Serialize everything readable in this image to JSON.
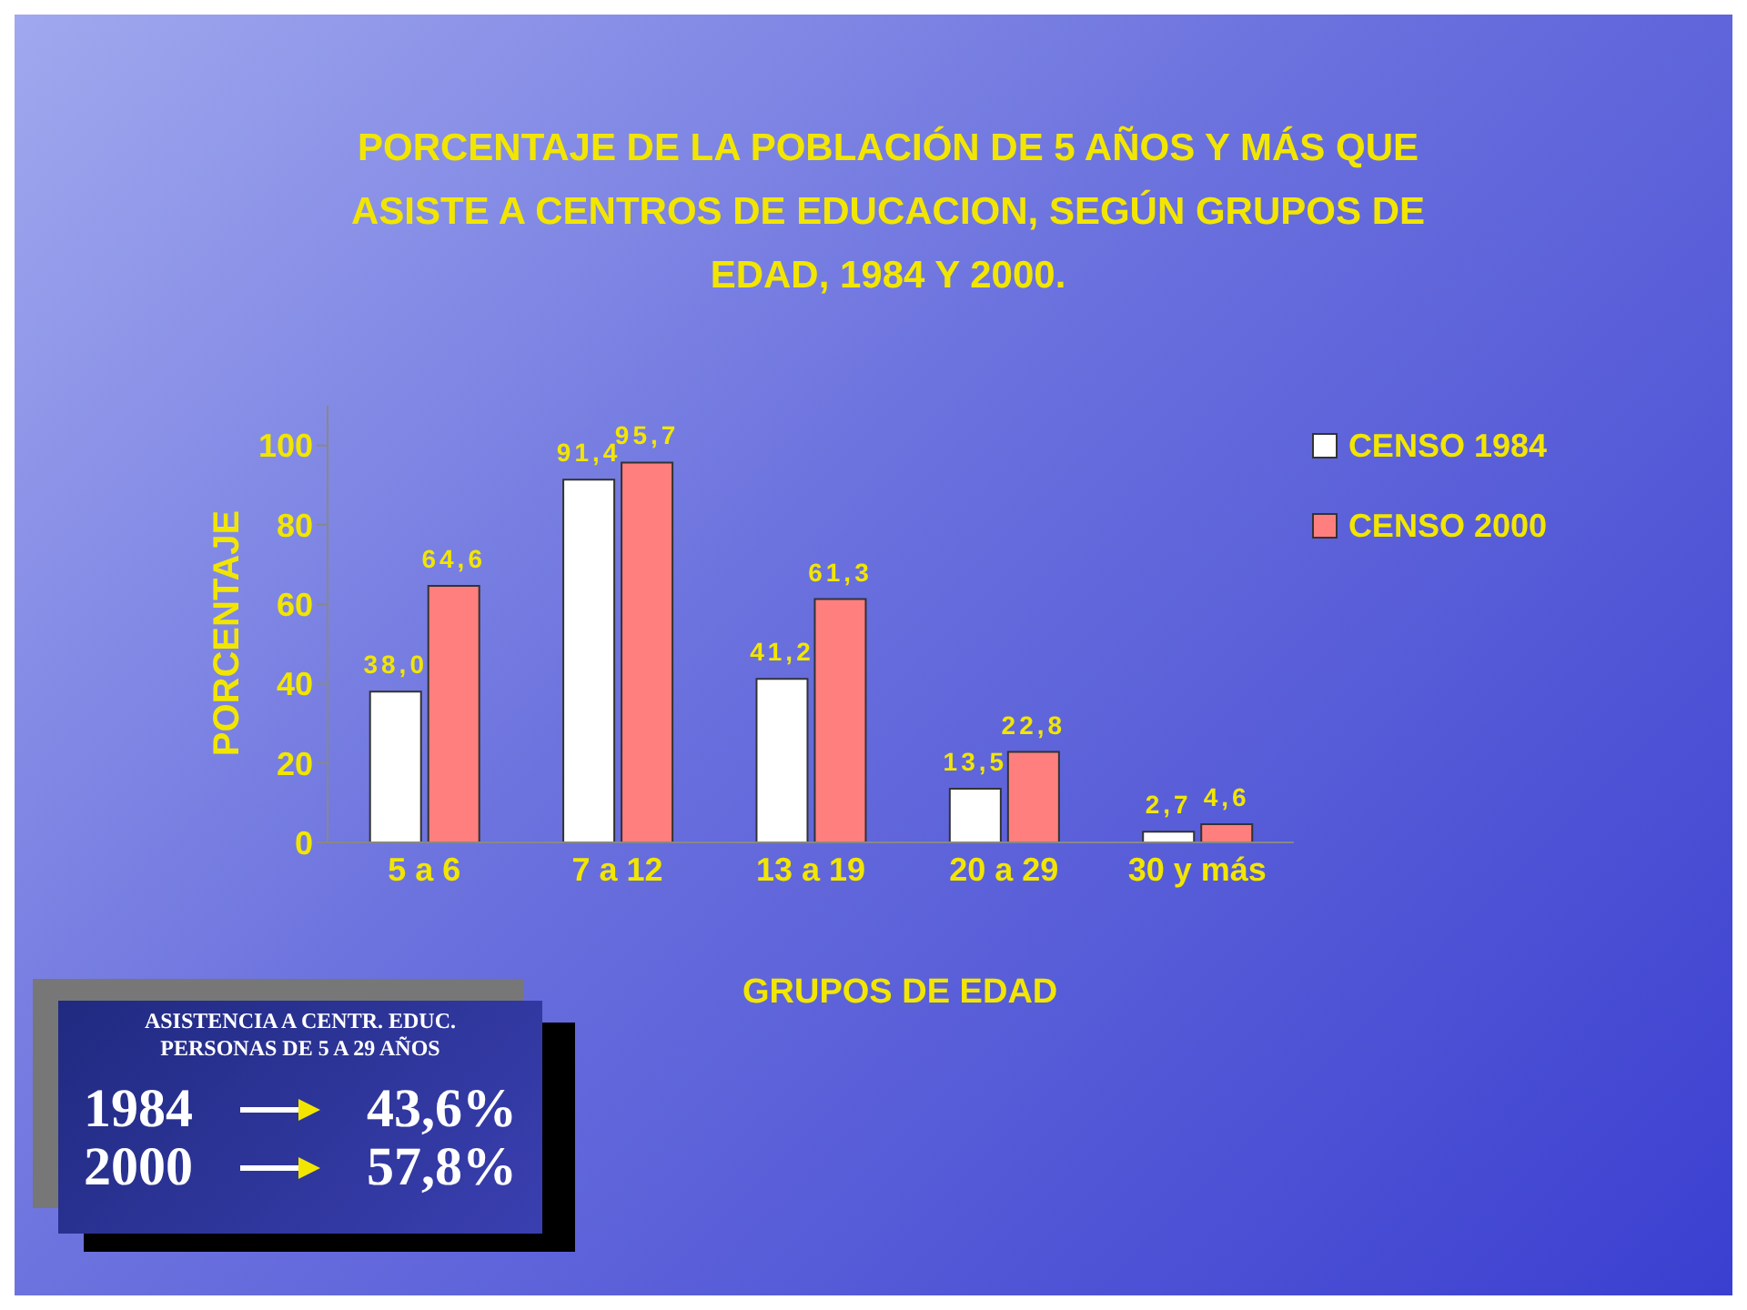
{
  "chart_data": {
    "type": "bar",
    "title": "PORCENTAJE DE LA POBLACIÓN DE 5 AÑOS Y MÁS QUE ASISTE A CENTROS DE EDUCACION, SEGÚN GRUPOS DE EDAD, 1984 Y 2000.",
    "xlabel": "GRUPOS DE EDAD",
    "ylabel": "PORCENTAJE",
    "categories": [
      "5 a   6",
      "7 a 12",
      "13 a 19",
      "20 a 29",
      "30 y más"
    ],
    "series": [
      {
        "name": "CENSO 1984",
        "color": "#ffffff",
        "values": [
          38.0,
          91.4,
          41.2,
          13.5,
          2.7
        ],
        "value_labels": [
          "38,0",
          "91,4",
          "41,2",
          "13,5",
          "2,7"
        ]
      },
      {
        "name": "CENSO 2000",
        "color": "#ff7f7f",
        "values": [
          64.6,
          95.7,
          61.3,
          22.8,
          4.6
        ],
        "value_labels": [
          "64,6",
          "95,7",
          "61,3",
          "22,8",
          "4,6"
        ]
      }
    ],
    "ylim": [
      0,
      110
    ],
    "yticks": [
      0,
      20,
      40,
      60,
      80,
      100
    ],
    "legend": "top right",
    "annotations": [
      "ASISTENCIA A CENTR. EDUC.",
      "PERSONAS DE 5 A 29 AÑOS",
      "1984",
      "43,6%",
      "2000",
      "57,8%"
    ]
  }
}
